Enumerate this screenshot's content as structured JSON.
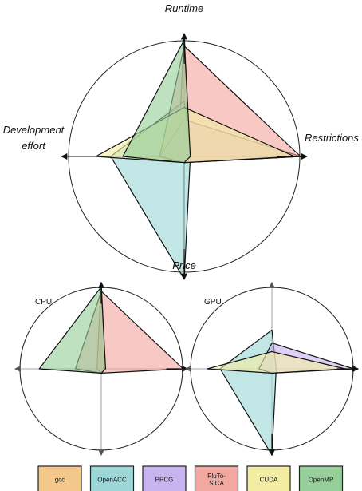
{
  "chart_data": [
    {
      "type": "radar",
      "title": "",
      "axes": [
        "Runtime",
        "Restrictions",
        "Price",
        "Development effort"
      ],
      "range": [
        0,
        1
      ],
      "grid": false,
      "series": [
        {
          "name": "gcc",
          "color": "#f3c88a",
          "values": [
            1.0,
            0.05,
            0.05,
            0.05
          ]
        },
        {
          "name": "OpenACC",
          "color": "#9dd6d6",
          "values": [
            0.45,
            0.05,
            1.0,
            0.6
          ]
        },
        {
          "name": "PPCG",
          "color": "#c7b3ee",
          "values": [
            0.3,
            0.95,
            0.05,
            0.2
          ]
        },
        {
          "name": "PluTo-SICA",
          "color": "#f2a7a0",
          "values": [
            0.9,
            0.95,
            0.05,
            0.2
          ]
        },
        {
          "name": "CUDA",
          "color": "#f2eda3",
          "values": [
            0.4,
            0.9,
            0.05,
            0.72
          ]
        },
        {
          "name": "OpenMP",
          "color": "#96cf9a",
          "values": [
            0.95,
            0.05,
            0.05,
            0.5
          ]
        }
      ]
    },
    {
      "type": "radar",
      "title": "CPU",
      "axes": [
        "Runtime",
        "Restrictions",
        "Price",
        "Development effort"
      ],
      "range": [
        0,
        1
      ],
      "grid": false,
      "series": [
        {
          "name": "gcc",
          "color": "#f3c88a",
          "values": [
            1.0,
            0.05,
            0.05,
            0.05
          ]
        },
        {
          "name": "PluTo-SICA",
          "color": "#f2a7a0",
          "values": [
            0.9,
            0.95,
            0.05,
            0.3
          ]
        },
        {
          "name": "OpenMP",
          "color": "#96cf9a",
          "values": [
            0.95,
            0.05,
            0.05,
            0.72
          ]
        }
      ]
    },
    {
      "type": "radar",
      "title": "GPU",
      "axes": [
        "Runtime",
        "Restrictions",
        "Price",
        "Development effort"
      ],
      "range": [
        0,
        1
      ],
      "grid": false,
      "series": [
        {
          "name": "OpenACC",
          "color": "#9dd6d6",
          "values": [
            0.45,
            0.05,
            1.0,
            0.6
          ]
        },
        {
          "name": "PPCG",
          "color": "#c7b3ee",
          "values": [
            0.3,
            0.95,
            0.05,
            0.15
          ]
        },
        {
          "name": "CUDA",
          "color": "#f2eda3",
          "values": [
            0.2,
            0.85,
            0.05,
            0.75
          ]
        }
      ]
    }
  ],
  "legend": [
    {
      "label": "gcc",
      "color": "#f3c88a"
    },
    {
      "label": "OpenACC",
      "color": "#9dd6d6"
    },
    {
      "label": "PPCG",
      "color": "#c7b3ee"
    },
    {
      "label": "PluTo-\nSICA",
      "color": "#f2a7a0"
    },
    {
      "label": "CUDA",
      "color": "#f2eda3"
    },
    {
      "label": "OpenMP",
      "color": "#96cf9a"
    }
  ]
}
